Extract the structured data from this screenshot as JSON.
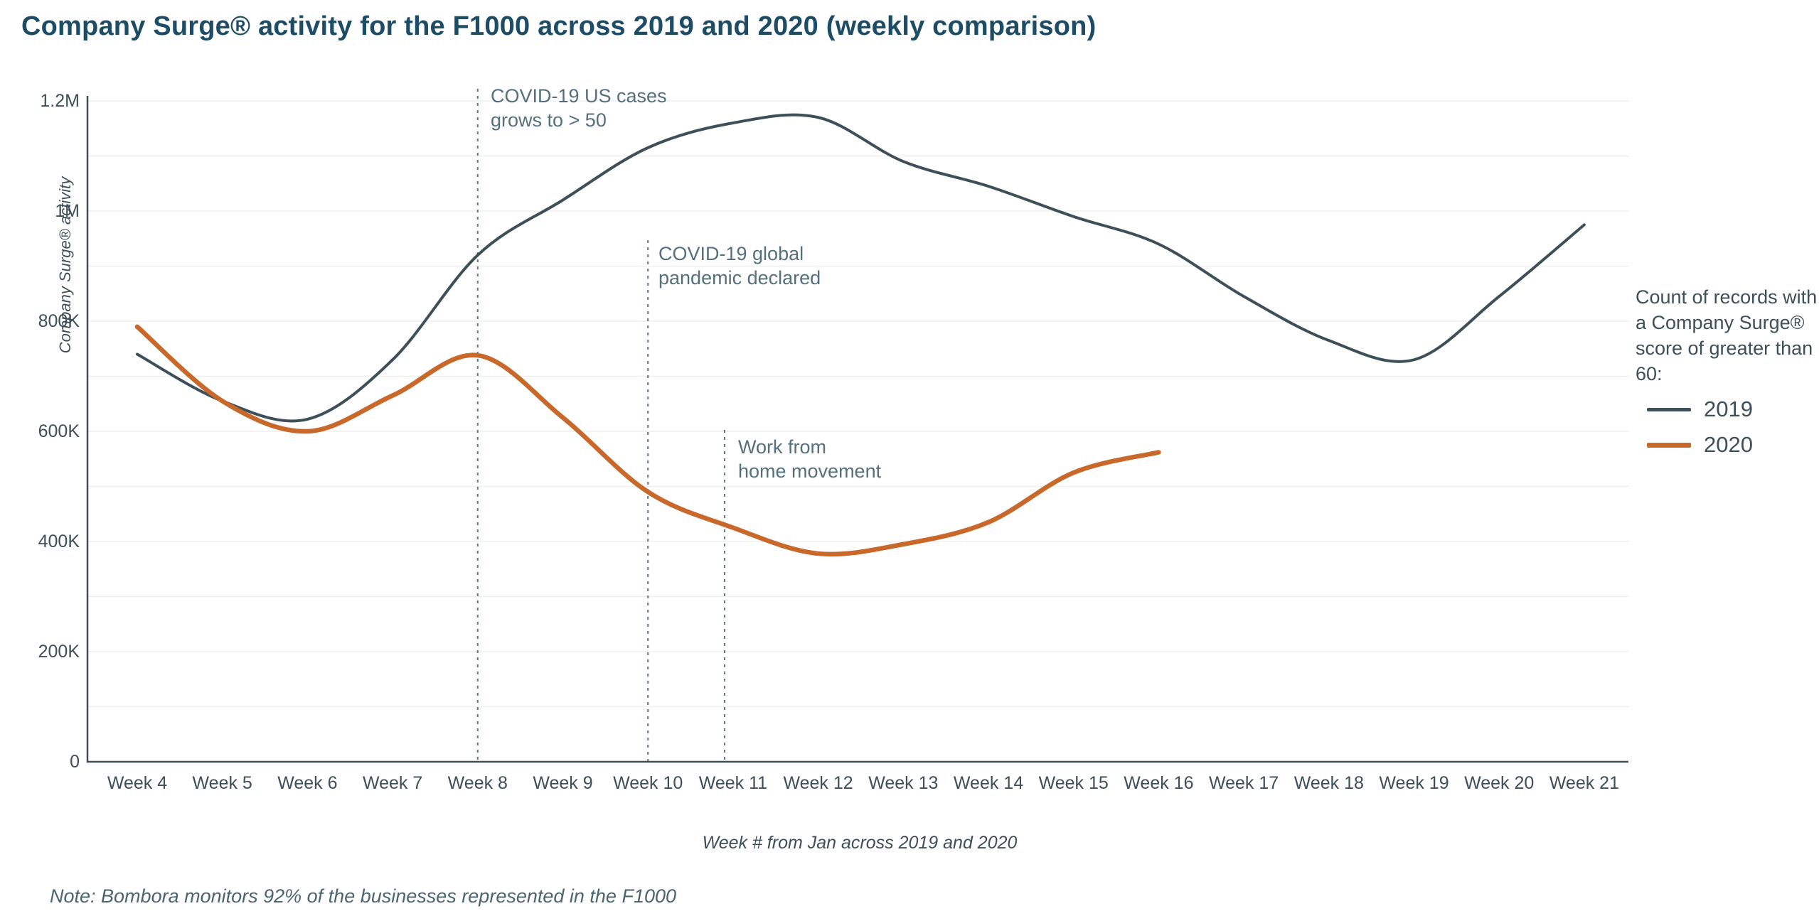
{
  "title": "Company Surge® activity for the F1000 across 2019 and 2020 (weekly comparison)",
  "note": "Note: Bombora monitors 92% of the businesses represented in the F1000",
  "colors": {
    "title": "#1d4d66",
    "axis": "#3d4f58",
    "grid": "#efefef",
    "annotation_line": "#5d7682",
    "series_2019": "#3d4f58",
    "series_2020": "#c8682a"
  },
  "chart_data": {
    "type": "line",
    "title": "Company Surge® activity for the F1000 across 2019 and 2020 (weekly comparison)",
    "xlabel": "Week # from Jan across 2019 and 2020",
    "ylabel": "Company Surge® activity",
    "categories": [
      "Week 4",
      "Week 5",
      "Week 6",
      "Week 7",
      "Week 8",
      "Week 9",
      "Week 10",
      "Week 11",
      "Week 12",
      "Week 13",
      "Week 14",
      "Week 15",
      "Week 16",
      "Week 17",
      "Week 18",
      "Week 19",
      "Week 20",
      "Week 21"
    ],
    "x_weeks": [
      4,
      5,
      6,
      7,
      8,
      9,
      10,
      11,
      12,
      13,
      14,
      15,
      16,
      17,
      18,
      19,
      20,
      21
    ],
    "y_ticks": [
      {
        "label": "0",
        "value": 0
      },
      {
        "label": "200K",
        "value": 200000
      },
      {
        "label": "400K",
        "value": 400000
      },
      {
        "label": "600K",
        "value": 600000
      },
      {
        "label": "800K",
        "value": 800000
      },
      {
        "label": "1M",
        "value": 1000000
      },
      {
        "label": "1.2M",
        "value": 1200000
      }
    ],
    "ylim": [
      0,
      1200000
    ],
    "grid": {
      "horizontal_every": 100000,
      "vertical": false
    },
    "legend": {
      "position": "right",
      "title": "Count of records with a Company Surge® score of greater than 60:",
      "entries": [
        {
          "name": "2019",
          "color": "#3d4f58",
          "thickness": 5
        },
        {
          "name": "2020",
          "color": "#c8682a",
          "thickness": 7
        }
      ]
    },
    "series": [
      {
        "name": "2019",
        "color": "#3d4f58",
        "stroke_width": 4,
        "x": [
          4,
          5,
          6,
          7,
          8,
          9,
          10,
          11,
          12,
          13,
          14,
          15,
          16,
          17,
          18,
          19,
          20,
          21
        ],
        "values": [
          740000,
          655000,
          622000,
          730000,
          920000,
          1020000,
          1115000,
          1160000,
          1170000,
          1090000,
          1045000,
          990000,
          940000,
          845000,
          765000,
          730000,
          845000,
          975000
        ]
      },
      {
        "name": "2020",
        "color": "#c8682a",
        "stroke_width": 6.5,
        "x": [
          4,
          5,
          6,
          7,
          8,
          9,
          10,
          11,
          12,
          13,
          14,
          15,
          16
        ],
        "values": [
          790000,
          655000,
          600000,
          665000,
          738000,
          625000,
          490000,
          425000,
          378000,
          395000,
          435000,
          525000,
          562000
        ]
      }
    ],
    "annotations": [
      {
        "lines": "COVID-19 US cases\ngrows to > 50",
        "week": 8
      },
      {
        "lines": "COVID-19 global\npandemic declared",
        "week": 10
      },
      {
        "lines": "Work from\nhome movement",
        "week": 10.9
      }
    ]
  }
}
